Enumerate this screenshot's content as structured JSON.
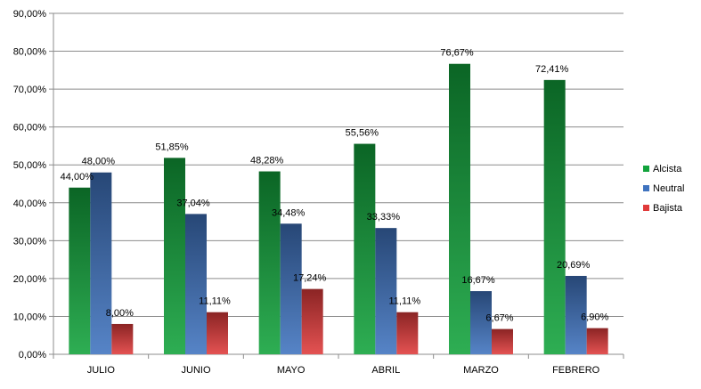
{
  "chart_data": {
    "type": "bar",
    "title": "",
    "xlabel": "",
    "ylabel": "",
    "categories": [
      "JULIO",
      "JUNIO",
      "MAYO",
      "ABRIL",
      "MARZO",
      "FEBRERO"
    ],
    "series": [
      {
        "name": "Alcista",
        "color": "#12a33c",
        "values": [
          44.0,
          51.85,
          48.28,
          55.56,
          76.67,
          72.41
        ],
        "labels": [
          "44,00%",
          "51,85%",
          "48,28%",
          "55,56%",
          "76,67%",
          "72,41%"
        ]
      },
      {
        "name": "Neutral",
        "color": "#3f73bf",
        "values": [
          48.0,
          37.04,
          34.48,
          33.33,
          16.67,
          20.69
        ],
        "labels": [
          "48,00%",
          "37,04%",
          "34,48%",
          "33,33%",
          "16,67%",
          "20,69%"
        ]
      },
      {
        "name": "Bajista",
        "color": "#e03a3a",
        "values": [
          8.0,
          11.11,
          17.24,
          11.11,
          6.67,
          6.9
        ],
        "labels": [
          "8,00%",
          "11,11%",
          "17,24%",
          "11,11%",
          "6,67%",
          "6,90%"
        ]
      }
    ],
    "ylim": [
      0,
      90
    ],
    "y_ticks": [
      0,
      10,
      20,
      30,
      40,
      50,
      60,
      70,
      80,
      90
    ],
    "y_tick_labels": [
      "0,00%",
      "10,00%",
      "20,00%",
      "30,00%",
      "40,00%",
      "50,00%",
      "60,00%",
      "70,00%",
      "80,00%",
      "90,00%"
    ],
    "grid": true,
    "legend": "right"
  }
}
